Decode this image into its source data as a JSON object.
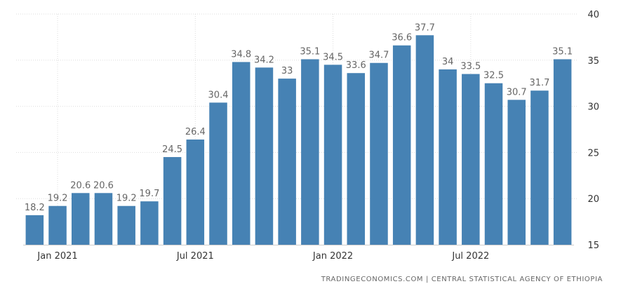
{
  "chart_data": {
    "type": "bar",
    "title": "",
    "xlabel": "",
    "ylabel": "",
    "categories": [
      "Dec 2020",
      "Jan 2021",
      "Feb 2021",
      "Mar 2021",
      "Apr 2021",
      "May 2021",
      "Jun 2021",
      "Jul 2021",
      "Aug 2021",
      "Sep 2021",
      "Oct 2021",
      "Nov 2021",
      "Dec 2021",
      "Jan 2022",
      "Feb 2022",
      "Mar 2022",
      "Apr 2022",
      "May 2022",
      "Jun 2022",
      "Jul 2022",
      "Aug 2022",
      "Sep 2022",
      "Oct 2022",
      "Nov 2022"
    ],
    "values": [
      18.2,
      19.2,
      20.6,
      20.6,
      19.2,
      19.7,
      24.5,
      26.4,
      30.4,
      34.8,
      34.2,
      33,
      35.1,
      34.5,
      33.6,
      34.7,
      36.6,
      37.7,
      34,
      33.5,
      32.5,
      30.7,
      31.7,
      35.1
    ],
    "value_labels": [
      "18.2",
      "19.2",
      "20.6",
      "20.6",
      "19.2",
      "19.7",
      "24.5",
      "26.4",
      "30.4",
      "34.8",
      "34.2",
      "33",
      "35.1",
      "34.5",
      "33.6",
      "34.7",
      "36.6",
      "37.7",
      "34",
      "33.5",
      "32.5",
      "30.7",
      "31.7",
      "35.1"
    ],
    "x_tick_labels": [
      {
        "category_index": 1,
        "label": "Jan 2021"
      },
      {
        "category_index": 7,
        "label": "Jul 2021"
      },
      {
        "category_index": 13,
        "label": "Jan 2022"
      },
      {
        "category_index": 19,
        "label": "Jul 2022"
      }
    ],
    "y_ticks": [
      15,
      20,
      25,
      30,
      35,
      40
    ],
    "ylim": [
      15,
      40
    ],
    "y_axis_position": "right",
    "grid": true,
    "bar_color": "#4682b4",
    "label_color": "#666666",
    "grid_color": "#dddddd"
  },
  "source_text": "TRADINGECONOMICS.COM | CENTRAL STATISTICAL AGENCY OF ETHIOPIA"
}
